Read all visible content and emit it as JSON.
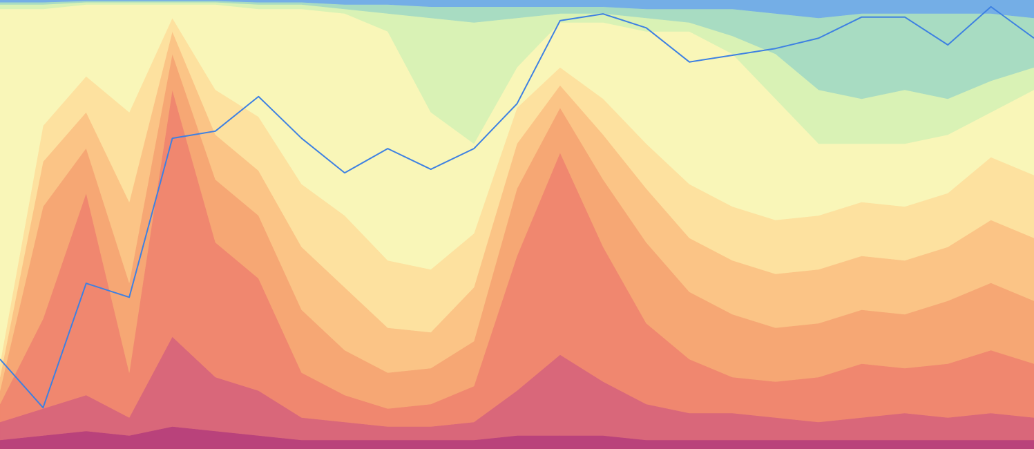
{
  "chart_data": {
    "type": "area",
    "stacked": true,
    "ylim": [
      0,
      100
    ],
    "series": [
      {
        "color": "#b9427b",
        "values": [
          2,
          3,
          4,
          3,
          5,
          4,
          3,
          2,
          2,
          2,
          2,
          2,
          3,
          3,
          3,
          2,
          2,
          2,
          2,
          2,
          2,
          2,
          2,
          2,
          2
        ]
      },
      {
        "color": "#d9677a",
        "values": [
          4,
          6,
          8,
          4,
          20,
          12,
          10,
          5,
          4,
          3,
          3,
          4,
          10,
          18,
          12,
          8,
          6,
          6,
          5,
          4,
          5,
          6,
          5,
          6,
          5
        ]
      },
      {
        "color": "#f0876f",
        "values": [
          4,
          20,
          45,
          10,
          55,
          30,
          25,
          10,
          6,
          4,
          5,
          8,
          30,
          45,
          30,
          18,
          12,
          8,
          8,
          10,
          12,
          10,
          12,
          14,
          12
        ]
      },
      {
        "color": "#f6a774",
        "values": [
          3,
          25,
          10,
          20,
          8,
          14,
          14,
          14,
          10,
          8,
          8,
          10,
          15,
          10,
          15,
          18,
          15,
          14,
          12,
          12,
          12,
          12,
          14,
          15,
          14
        ]
      },
      {
        "color": "#fbc486",
        "values": [
          3,
          10,
          8,
          18,
          5,
          10,
          10,
          14,
          14,
          10,
          8,
          12,
          10,
          5,
          10,
          12,
          12,
          12,
          12,
          12,
          12,
          12,
          12,
          14,
          14
        ]
      },
      {
        "color": "#fde19f",
        "values": [
          3,
          8,
          8,
          20,
          3,
          10,
          12,
          14,
          16,
          15,
          14,
          12,
          8,
          4,
          8,
          10,
          12,
          12,
          12,
          12,
          12,
          12,
          12,
          14,
          14
        ]
      },
      {
        "color": "#f9f6b8",
        "values": [
          79,
          26,
          16,
          24,
          3,
          19,
          24,
          39,
          45,
          51,
          35,
          20,
          9,
          10,
          17,
          25,
          34,
          34,
          27,
          16,
          13,
          14,
          13,
          10,
          19
        ]
      },
      {
        "color": "#d9f2b5",
        "values": [
          1,
          1,
          0.5,
          0.5,
          0.5,
          0.5,
          1,
          1,
          1,
          4,
          21,
          27,
          11,
          2,
          2,
          3,
          2,
          4,
          10,
          12,
          10,
          12,
          8,
          7,
          5
        ]
      },
      {
        "color": "#a8dcc2",
        "values": [
          0.5,
          0.5,
          0.3,
          0.3,
          0.3,
          0.3,
          0.5,
          0.5,
          1,
          2,
          2.5,
          3.5,
          2.5,
          1.5,
          1.5,
          2,
          3,
          6,
          9,
          16,
          19,
          17,
          19,
          15,
          11
        ]
      },
      {
        "color": "#74aee6",
        "values": [
          0.5,
          0.5,
          0.2,
          0.2,
          0.2,
          0.2,
          0.5,
          0.5,
          1,
          1,
          1.5,
          1.5,
          1.5,
          1.5,
          1.5,
          2,
          2,
          2,
          3,
          4,
          3,
          3,
          3,
          3,
          4
        ]
      }
    ],
    "line": {
      "color": "#3d80e2",
      "values": [
        20,
        9.2,
        36.9,
        33.8,
        69.2,
        70.8,
        78.5,
        69.2,
        61.5,
        66.9,
        62.3,
        66.9,
        76.9,
        95.4,
        96.9,
        93.8,
        86.2,
        87.7,
        89.2,
        91.5,
        96.2,
        96.2,
        90,
        98.5,
        91.5
      ]
    }
  }
}
